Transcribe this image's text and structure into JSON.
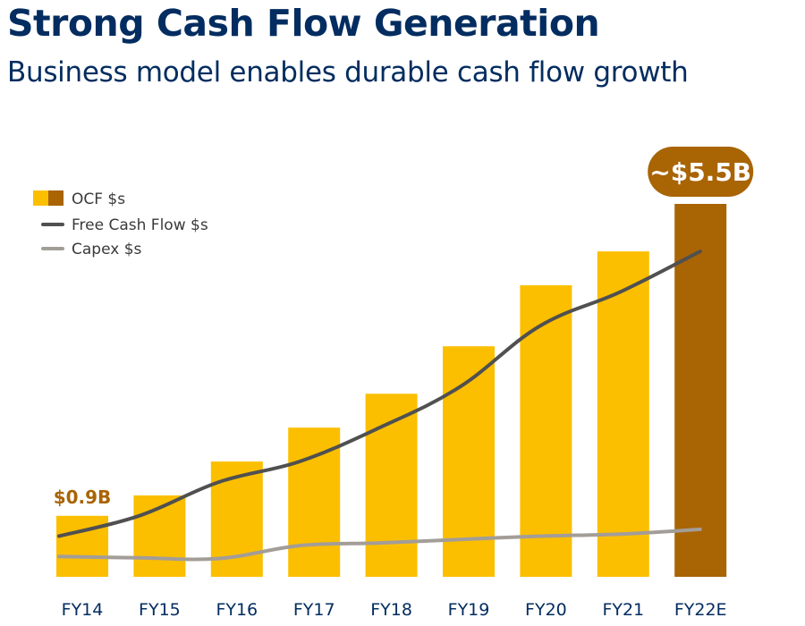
{
  "header": {
    "title": "Strong Cash Flow Generation",
    "subtitle": "Business model enables durable cash flow growth"
  },
  "colors": {
    "title": "#032d60",
    "ocf_bar": "#fbbf00",
    "ocf_bar_estimate": "#a96404",
    "free_cash_flow_line": "#505050",
    "capex_line": "#a39d98",
    "tick_label": "#032d60",
    "data_label": "#a96404"
  },
  "chart_data": {
    "type": "bar",
    "categories": [
      "FY14",
      "FY15",
      "FY16",
      "FY17",
      "FY18",
      "FY19",
      "FY20",
      "FY21",
      "FY22E"
    ],
    "estimate_categories": [
      "FY22E"
    ],
    "legend_position": "top-left",
    "grid": false,
    "ylim": [
      0,
      5.5
    ],
    "series": [
      {
        "name": "OCF $s",
        "type": "bar",
        "values": [
          0.9,
          1.2,
          1.7,
          2.2,
          2.7,
          3.4,
          4.3,
          4.8,
          5.5
        ]
      },
      {
        "name": "Free Cash Flow $s",
        "type": "line",
        "values": [
          0.6,
          0.9,
          1.4,
          1.7,
          2.2,
          2.8,
          3.7,
          4.2,
          4.8
        ]
      },
      {
        "name": "Capex $s",
        "type": "line",
        "values": [
          0.3,
          0.28,
          0.27,
          0.46,
          0.5,
          0.55,
          0.6,
          0.63,
          0.7
        ]
      }
    ],
    "annotations": [
      {
        "category": "FY14",
        "text": "$0.9B",
        "style": "label"
      },
      {
        "category": "FY22E",
        "text": "~$5.5B",
        "style": "badge"
      }
    ]
  }
}
